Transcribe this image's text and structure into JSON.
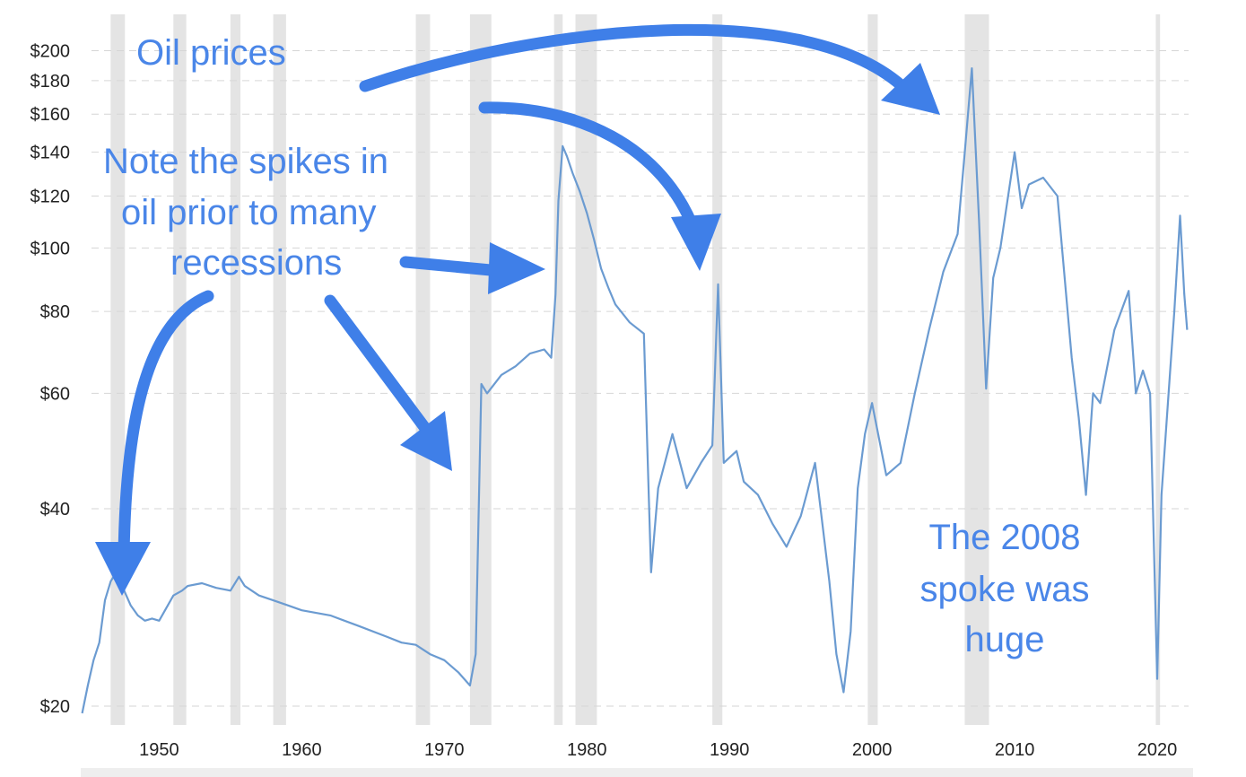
{
  "chart_data": {
    "type": "line",
    "title": "",
    "xlabel": "",
    "ylabel": "",
    "y_scale": "log",
    "ylim": [
      19.5,
      208
    ],
    "xlim": [
      1944.5,
      2022.2
    ],
    "grid": true,
    "y_ticks": [
      {
        "value": 200,
        "label": "$200"
      },
      {
        "value": 180,
        "label": "$180"
      },
      {
        "value": 160,
        "label": "$160"
      },
      {
        "value": 140,
        "label": "$140"
      },
      {
        "value": 120,
        "label": "$120"
      },
      {
        "value": 100,
        "label": "$100"
      },
      {
        "value": 80,
        "label": "$80"
      },
      {
        "value": 60,
        "label": "$60"
      },
      {
        "value": 40,
        "label": "$40"
      },
      {
        "value": 20,
        "label": "$20"
      }
    ],
    "x_ticks": [
      {
        "value": 1950,
        "label": "1950"
      },
      {
        "value": 1960,
        "label": "1960"
      },
      {
        "value": 1970,
        "label": "1970"
      },
      {
        "value": 1980,
        "label": "1980"
      },
      {
        "value": 1990,
        "label": "1990"
      },
      {
        "value": 2000,
        "label": "2000"
      },
      {
        "value": 2010,
        "label": "2010"
      },
      {
        "value": 2020,
        "label": "2020"
      }
    ],
    "recessions": [
      [
        1946.6,
        1947.6
      ],
      [
        1951.0,
        1951.9
      ],
      [
        1955.0,
        1955.7
      ],
      [
        1958.0,
        1958.9
      ],
      [
        1968.0,
        1969.0
      ],
      [
        1971.8,
        1973.3
      ],
      [
        1977.7,
        1978.3
      ],
      [
        1979.2,
        1980.7
      ],
      [
        1988.8,
        1989.5
      ],
      [
        1999.7,
        2000.4
      ],
      [
        2006.5,
        2008.2
      ],
      [
        2019.9,
        2020.2
      ]
    ],
    "series": [
      {
        "color": "#6b9bd1",
        "x": [
          1944.6,
          1945.0,
          1945.4,
          1945.8,
          1946.2,
          1946.6,
          1947.0,
          1947.4,
          1948.0,
          1948.5,
          1949.0,
          1949.5,
          1950.0,
          1951.0,
          1951.6,
          1952.0,
          1953.0,
          1954.0,
          1955.0,
          1955.6,
          1956.0,
          1957.0,
          1958.0,
          1959.0,
          1960.0,
          1962.0,
          1964.0,
          1966.0,
          1967.0,
          1968.0,
          1969.0,
          1970.0,
          1971.0,
          1971.8,
          1972.2,
          1972.6,
          1973.0,
          1974.0,
          1975.0,
          1976.0,
          1977.0,
          1977.5,
          1977.8,
          1978.0,
          1978.3,
          1978.6,
          1979.0,
          1979.5,
          1980.0,
          1980.5,
          1981.0,
          1981.5,
          1982.0,
          1983.0,
          1984.0,
          1984.5,
          1985.0,
          1986.0,
          1987.0,
          1988.0,
          1988.8,
          1989.2,
          1989.6,
          1990.5,
          1991.0,
          1992.0,
          1993.0,
          1994.0,
          1995.0,
          1996.0,
          1997.0,
          1997.5,
          1998.0,
          1998.5,
          1999.0,
          1999.5,
          2000.0,
          2001.0,
          2002.0,
          2003.0,
          2004.0,
          2005.0,
          2006.0,
          2006.5,
          2007.0,
          2007.5,
          2008.0,
          2008.5,
          2009.0,
          2010.0,
          2010.5,
          2011.0,
          2012.0,
          2013.0,
          2014.0,
          2014.5,
          2015.0,
          2015.5,
          2016.0,
          2017.0,
          2018.0,
          2018.5,
          2019.0,
          2019.5,
          2020.0,
          2020.3,
          2020.8,
          2021.2,
          2021.6,
          2021.9,
          2022.1
        ],
        "y": [
          19.5,
          21.5,
          23.5,
          25.0,
          29.0,
          31.0,
          32.0,
          30.5,
          28.5,
          27.5,
          27.0,
          27.2,
          27.0,
          29.5,
          30.0,
          30.5,
          30.8,
          30.3,
          30.0,
          31.5,
          30.5,
          29.5,
          29.0,
          28.5,
          28.0,
          27.5,
          26.5,
          25.5,
          25.0,
          24.8,
          24.0,
          23.5,
          22.5,
          21.5,
          24.0,
          62.0,
          60.0,
          64.0,
          66.0,
          69.0,
          70.0,
          68.0,
          85.0,
          118.0,
          143.0,
          138.0,
          130.0,
          122.0,
          113.0,
          103.0,
          93.0,
          87.0,
          82.0,
          77.0,
          74.0,
          32.0,
          43.0,
          52.0,
          43.0,
          47.0,
          50.0,
          88.0,
          47.0,
          49.0,
          44.0,
          42.0,
          38.0,
          35.0,
          39.0,
          47.0,
          31.0,
          24.0,
          21.0,
          26.0,
          43.0,
          52.0,
          58.0,
          45.0,
          47.0,
          60.0,
          75.0,
          92.0,
          105.0,
          140.0,
          188.0,
          110.0,
          61.0,
          90.0,
          100.0,
          140.0,
          115.0,
          125.0,
          128.0,
          120.0,
          68.0,
          55.0,
          42.0,
          60.0,
          58.0,
          75.0,
          86.0,
          60.0,
          65.0,
          60.0,
          22.0,
          42.0,
          60.0,
          80.0,
          112.0,
          85.0,
          75.0
        ]
      }
    ],
    "annotations": [
      "Oil prices",
      "Note the spikes in",
      "oil prior to many",
      "recessions",
      "The 2008",
      "spoke was",
      "huge"
    ]
  }
}
